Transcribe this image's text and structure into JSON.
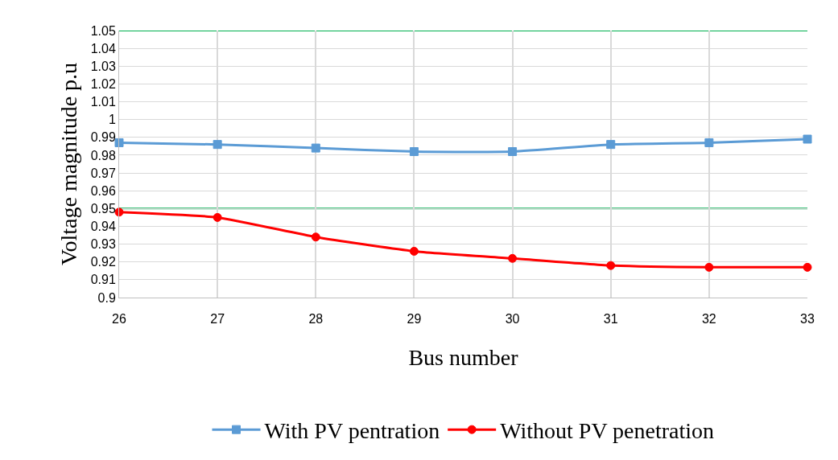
{
  "chart_data": {
    "type": "line",
    "xlabel": "Bus number",
    "ylabel": "Voltage magnitude p.u",
    "x": [
      26,
      27,
      28,
      29,
      30,
      31,
      32,
      33
    ],
    "series": [
      {
        "name": "With PV pentration",
        "color": "#5b9bd5",
        "marker": "square",
        "values": [
          0.987,
          0.986,
          0.984,
          0.982,
          0.982,
          0.986,
          0.987,
          0.989
        ]
      },
      {
        "name": "Without PV penetration",
        "color": "#ff0000",
        "marker": "circle",
        "values": [
          0.948,
          0.945,
          0.934,
          0.926,
          0.922,
          0.918,
          0.917,
          0.917
        ]
      }
    ],
    "xlim": [
      26,
      33
    ],
    "xticks": [
      26,
      27,
      28,
      29,
      30,
      31,
      32,
      33
    ],
    "ylim": [
      0.9,
      1.05
    ],
    "yticks": [
      0.9,
      0.91,
      0.92,
      0.93,
      0.94,
      0.95,
      0.96,
      0.97,
      0.98,
      0.99,
      1,
      1.01,
      1.02,
      1.03,
      1.04,
      1.05
    ],
    "ref_lines": [
      {
        "axis": "y",
        "value": 1.05,
        "color": "#00b050"
      },
      {
        "axis": "y",
        "value": 0.95,
        "color": "#00b050"
      }
    ],
    "grid": true,
    "legend": "bottom",
    "line_style": "solid"
  }
}
